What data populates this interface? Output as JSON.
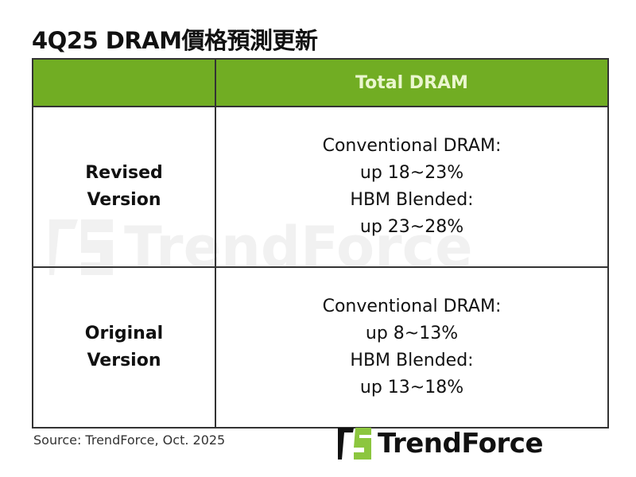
{
  "title": "4Q25 DRAM價格預測更新",
  "table": {
    "header": [
      "",
      "Total DRAM"
    ],
    "rows": [
      {
        "label": [
          "Revised",
          "Version"
        ],
        "lines": [
          "Conventional DRAM:",
          "up 18~23%",
          "HBM Blended:",
          "up 23~28%"
        ]
      },
      {
        "label": [
          "Original",
          "Version"
        ],
        "lines": [
          "Conventional DRAM:",
          "up 8~13%",
          "HBM Blended:",
          "up 13~18%"
        ]
      }
    ]
  },
  "source": "Source: TrendForce, Oct. 2025",
  "logo": {
    "text": "TrendForce",
    "icon": "trendforce-logo-icon"
  },
  "watermark": "TrendForce",
  "colors": {
    "header_bg": "#71ad23",
    "header_text": "#eaf6cf",
    "logo_green": "#8cc63f"
  }
}
